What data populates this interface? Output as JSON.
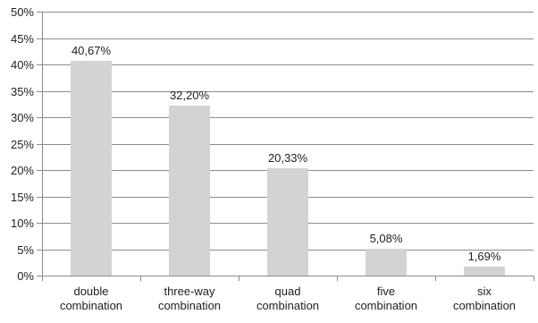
{
  "chart_data": {
    "type": "bar",
    "categories": [
      [
        "double",
        "combination"
      ],
      [
        "three-way",
        "combination"
      ],
      [
        "quad",
        "combination"
      ],
      [
        "five",
        "combination"
      ],
      [
        "six",
        "combination"
      ]
    ],
    "values": [
      40.67,
      32.2,
      20.33,
      5.08,
      1.69
    ],
    "data_labels": [
      "40,67%",
      "32,20%",
      "20,33%",
      "5,08%",
      "1,69%"
    ],
    "yticks": [
      "0%",
      "5%",
      "10%",
      "15%",
      "20%",
      "25%",
      "30%",
      "35%",
      "40%",
      "45%",
      "50%"
    ],
    "ylim": [
      0,
      50
    ],
    "grid": true,
    "bar_color": "#d3d3d3",
    "title": "",
    "xlabel": "",
    "ylabel": ""
  }
}
